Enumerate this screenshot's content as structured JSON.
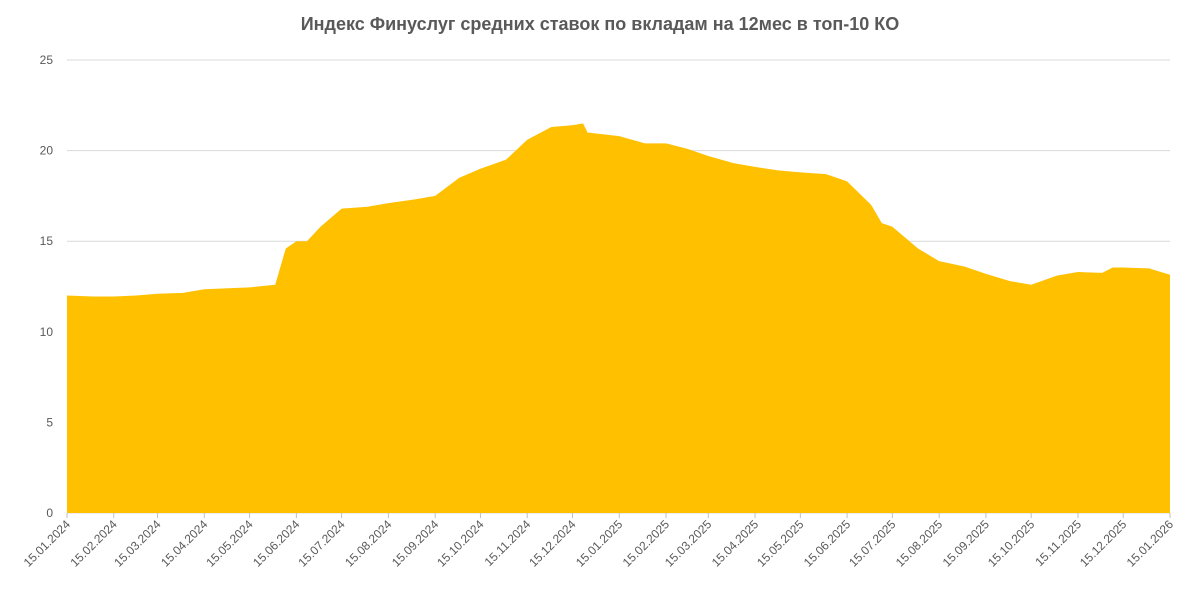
{
  "chart_data": {
    "type": "area",
    "title": "Индекс Финуслуг средних ставок по вкладам на 12мес в топ-10 КО",
    "color": "#ffc000",
    "grid": true,
    "x": [
      "15.01.2024",
      "01.02.2024",
      "15.02.2024",
      "01.03.2024",
      "15.03.2024",
      "01.04.2024",
      "15.04.2024",
      "01.05.2024",
      "15.05.2024",
      "01.06.2024",
      "08.06.2024",
      "15.06.2024",
      "22.06.2024",
      "01.07.2024",
      "15.07.2024",
      "01.08.2024",
      "15.08.2024",
      "01.09.2024",
      "15.09.2024",
      "01.10.2024",
      "15.10.2024",
      "01.11.2024",
      "15.11.2024",
      "01.12.2024",
      "15.12.2024",
      "22.12.2024",
      "25.12.2024",
      "15.01.2025",
      "01.02.2025",
      "15.02.2025",
      "01.03.2025",
      "15.03.2025",
      "01.04.2025",
      "15.04.2025",
      "01.05.2025",
      "15.05.2025",
      "01.06.2025",
      "15.06.2025",
      "01.07.2025",
      "08.07.2025",
      "15.07.2025",
      "01.08.2025",
      "15.08.2025",
      "01.09.2025",
      "15.09.2025",
      "01.10.2025",
      "15.10.2025",
      "01.11.2025",
      "15.11.2025",
      "01.12.2025",
      "08.12.2025",
      "15.12.2025",
      "01.01.2026",
      "15.01.2026"
    ],
    "values": [
      12.0,
      11.95,
      11.95,
      12.0,
      12.1,
      12.15,
      12.35,
      12.4,
      12.45,
      12.6,
      14.6,
      15.0,
      15.0,
      15.8,
      16.8,
      16.9,
      17.1,
      17.3,
      17.5,
      18.5,
      19.0,
      19.5,
      20.6,
      21.3,
      21.4,
      21.5,
      21.0,
      20.8,
      20.4,
      20.4,
      20.1,
      19.7,
      19.3,
      19.1,
      18.9,
      18.8,
      18.7,
      18.3,
      17.0,
      16.0,
      15.8,
      14.6,
      13.9,
      13.6,
      13.2,
      12.8,
      12.6,
      13.1,
      13.3,
      13.25,
      13.55,
      13.55,
      13.5,
      13.15
    ],
    "xlim": [
      "15.01.2024",
      "15.01.2026"
    ],
    "xticks": [
      "15.01.2024",
      "15.02.2024",
      "15.03.2024",
      "15.04.2024",
      "15.05.2024",
      "15.06.2024",
      "15.07.2024",
      "15.08.2024",
      "15.09.2024",
      "15.10.2024",
      "15.11.2024",
      "15.12.2024",
      "15.01.2025",
      "15.02.2025",
      "15.03.2025",
      "15.04.2025",
      "15.05.2025",
      "15.06.2025",
      "15.07.2025",
      "15.08.2025",
      "15.09.2025",
      "15.10.2025",
      "15.11.2025",
      "15.12.2025",
      "15.01.2026"
    ],
    "ylim": [
      0,
      25
    ],
    "yticks": [
      0,
      5,
      10,
      15,
      20,
      25
    ]
  }
}
